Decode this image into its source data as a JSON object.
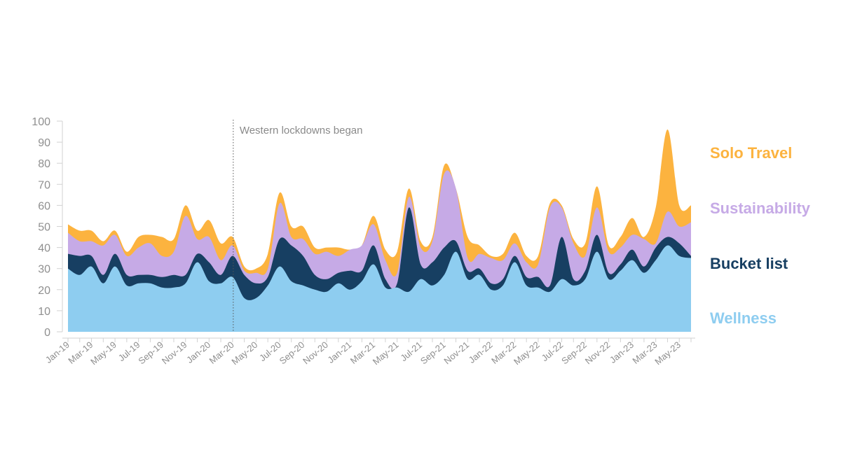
{
  "chart_data": {
    "type": "area",
    "stacked": true,
    "smooth": true,
    "x": [
      "Jan-19",
      "Feb-19",
      "Mar-19",
      "Apr-19",
      "May-19",
      "Jun-19",
      "Jul-19",
      "Aug-19",
      "Sep-19",
      "Oct-19",
      "Nov-19",
      "Dec-19",
      "Jan-20",
      "Feb-20",
      "Mar-20",
      "Apr-20",
      "May-20",
      "Jun-20",
      "Jul-20",
      "Aug-20",
      "Sep-20",
      "Oct-20",
      "Nov-20",
      "Dec-20",
      "Jan-21",
      "Feb-21",
      "Mar-21",
      "Apr-21",
      "May-21",
      "Jun-21",
      "Jul-21",
      "Aug-21",
      "Sep-21",
      "Oct-21",
      "Nov-21",
      "Dec-21",
      "Jan-22",
      "Feb-22",
      "Mar-22",
      "Apr-22",
      "May-22",
      "Jun-22",
      "Jul-22",
      "Aug-22",
      "Sep-22",
      "Oct-22",
      "Nov-22",
      "Dec-22",
      "Jan-23",
      "Feb-23",
      "Mar-23",
      "Apr-23",
      "May-23",
      "Jun-23"
    ],
    "x_tick_labels": [
      "Jan-19",
      "Mar-19",
      "May-19",
      "Jul-19",
      "Sep-19",
      "Nov-19",
      "Jan-20",
      "Mar-20",
      "May-20",
      "Jul-20",
      "Sep-20",
      "Nov-20",
      "Jan-21",
      "Mar-21",
      "May-21",
      "Jul-21",
      "Sep-21",
      "Nov-21",
      "Jan-22",
      "Mar-22",
      "May-22",
      "Jul-22",
      "Sep-22",
      "Nov-22",
      "Jan-23",
      "Mar-23",
      "May-23"
    ],
    "y_ticks": [
      0,
      10,
      20,
      30,
      40,
      50,
      60,
      70,
      80,
      90,
      100
    ],
    "ylim": [
      0,
      100
    ],
    "series": [
      {
        "name": "Wellness",
        "color": "#8ecdf0",
        "values": [
          30,
          27,
          31,
          23,
          31,
          22,
          23,
          23,
          21,
          21,
          23,
          33,
          24,
          23,
          26,
          16,
          16,
          22,
          31,
          24,
          22,
          20,
          19,
          23,
          20,
          24,
          32,
          21,
          21,
          19,
          25,
          22,
          27,
          38,
          25,
          27,
          20,
          22,
          33,
          22,
          21,
          19,
          25,
          22,
          25,
          38,
          25,
          29,
          34,
          28,
          34,
          41,
          36,
          35
        ]
      },
      {
        "name": "Bucket list",
        "color": "#173f62",
        "values": [
          7,
          9,
          5,
          4,
          6,
          5,
          4,
          4,
          5,
          6,
          4,
          4,
          9,
          4,
          10,
          11,
          7,
          4,
          13,
          17,
          14,
          7,
          6,
          5,
          9,
          5,
          9,
          4,
          2,
          40,
          7,
          11,
          13,
          5,
          4,
          3,
          3,
          3,
          3,
          4,
          5,
          3,
          20,
          3,
          4,
          8,
          3,
          3,
          5,
          3,
          6,
          4,
          6,
          1
        ]
      },
      {
        "name": "Sustainability",
        "color": "#c6aae6",
        "values": [
          10,
          7,
          7,
          14,
          9,
          9,
          13,
          15,
          10,
          11,
          28,
          7,
          12,
          7,
          5,
          2,
          5,
          4,
          17,
          4,
          8,
          10,
          13,
          8,
          10,
          12,
          10,
          9,
          5,
          5,
          8,
          10,
          35,
          25,
          6,
          7,
          12,
          9,
          6,
          7,
          6,
          37,
          14,
          17,
          7,
          13,
          10,
          8,
          7,
          13,
          2,
          12,
          8,
          16
        ]
      },
      {
        "name": "Solo Travel",
        "color": "#fcb33f",
        "values": [
          4,
          5,
          5,
          2,
          2,
          2,
          5,
          4,
          9,
          6,
          5,
          4,
          8,
          8,
          4,
          2,
          2,
          7,
          5,
          5,
          6,
          3,
          2,
          4,
          0,
          0,
          4,
          5,
          10,
          4,
          3,
          2,
          4,
          0,
          10,
          4,
          1,
          3,
          5,
          3,
          4,
          2,
          1,
          2,
          6,
          10,
          3,
          5,
          8,
          1,
          17,
          39,
          10,
          8
        ]
      }
    ],
    "annotation": {
      "x": "Mar-20",
      "text": "Western lockdowns began"
    },
    "legend_position": "right"
  }
}
